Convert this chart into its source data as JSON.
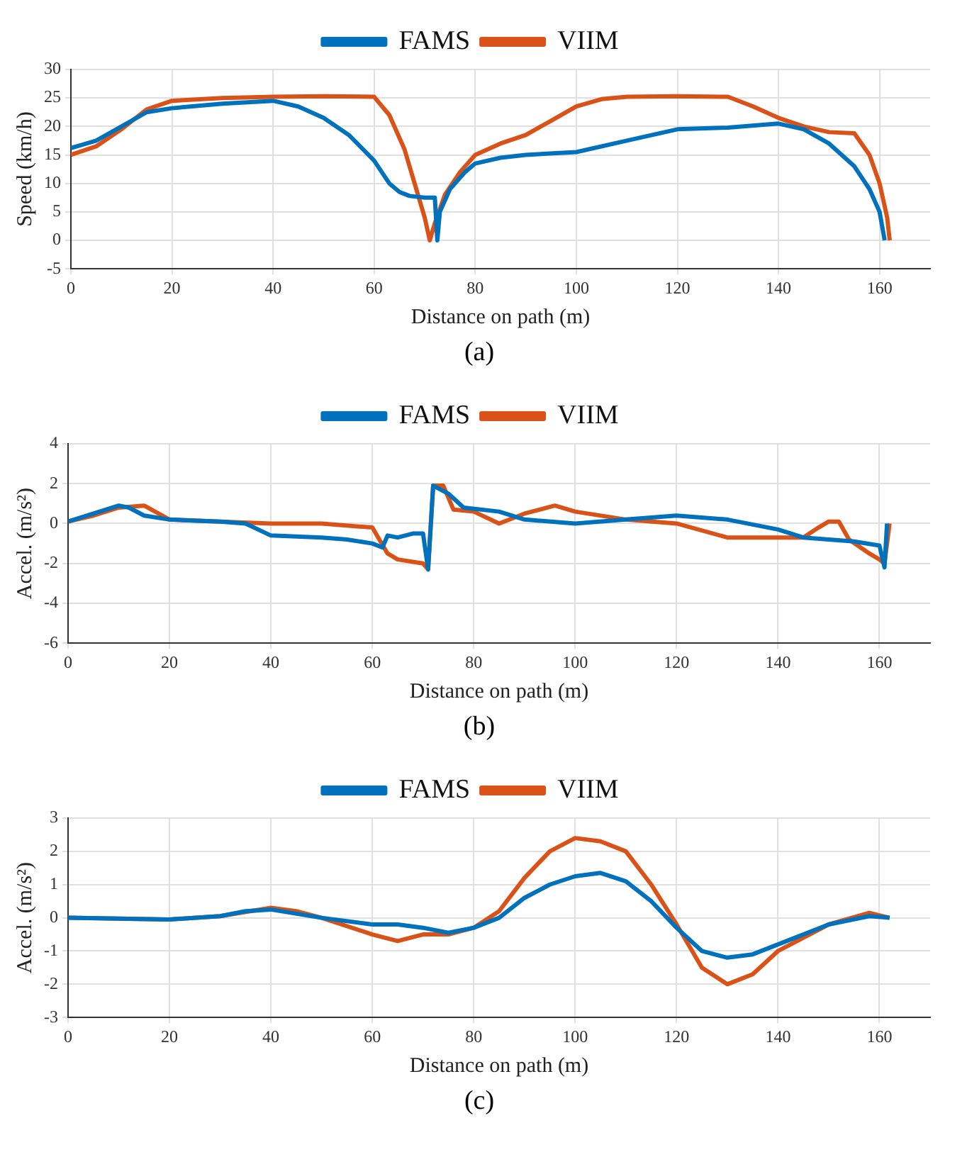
{
  "chart_data": [
    {
      "type": "line",
      "ylabel": "Speed (km/h)",
      "xlabel": "Distance on path (m)",
      "annotations": [
        "(a)"
      ],
      "xlim": [
        0,
        170
      ],
      "xticks": [
        0,
        20,
        40,
        60,
        80,
        100,
        120,
        140,
        160
      ],
      "ylim": [
        -5,
        30
      ],
      "yticks": [
        -5,
        0,
        5,
        10,
        15,
        20,
        25,
        30
      ],
      "grid": true,
      "legend": "top",
      "marker": "none",
      "line_style": "solid",
      "series": [
        {
          "name": "FAMS",
          "color": "#0072bd",
          "x": [
            0,
            5,
            10,
            15,
            20,
            30,
            40,
            45,
            50,
            55,
            60,
            63,
            65,
            67,
            70,
            72,
            72.5,
            73,
            75,
            78,
            80,
            85,
            90,
            100,
            110,
            120,
            130,
            140,
            145,
            150,
            155,
            158,
            160,
            161
          ],
          "values": [
            16.2,
            17.5,
            20,
            22.5,
            23.2,
            24,
            24.5,
            23.5,
            21.5,
            18.5,
            14,
            10,
            8.5,
            7.8,
            7.5,
            7.5,
            0,
            5,
            9,
            12,
            13.5,
            14.5,
            15,
            15.5,
            17.5,
            19.5,
            19.8,
            20.5,
            19.5,
            17,
            13,
            9,
            5,
            0
          ]
        },
        {
          "name": "VIIM",
          "color": "#d95319",
          "x": [
            0,
            5,
            10,
            15,
            20,
            30,
            40,
            50,
            60,
            63,
            66,
            68,
            70,
            71,
            72,
            74,
            77,
            80,
            85,
            90,
            95,
            100,
            105,
            110,
            120,
            130,
            135,
            140,
            145,
            150,
            155,
            158,
            160,
            161.5,
            162
          ],
          "values": [
            15,
            16.5,
            19.5,
            23,
            24.5,
            25,
            25.2,
            25.3,
            25.2,
            22,
            16,
            10,
            4,
            0,
            3,
            8,
            12,
            15,
            17,
            18.5,
            21,
            23.5,
            24.8,
            25.2,
            25.3,
            25.2,
            23.5,
            21.5,
            20,
            19,
            18.8,
            15,
            10,
            4,
            0
          ]
        }
      ]
    },
    {
      "type": "line",
      "ylabel": "Accel. (m/s²)",
      "xlabel": "Distance on path (m)",
      "annotations": [
        "(b)"
      ],
      "xlim": [
        0,
        170
      ],
      "xticks": [
        0,
        20,
        40,
        60,
        80,
        100,
        120,
        140,
        160
      ],
      "ylim": [
        -6,
        4
      ],
      "yticks": [
        -6,
        -4,
        -2,
        0,
        2,
        4
      ],
      "grid": true,
      "legend": "top",
      "marker": "none",
      "line_style": "solid",
      "series": [
        {
          "name": "FAMS",
          "color": "#0072bd",
          "x": [
            0,
            5,
            10,
            12,
            15,
            20,
            30,
            35,
            40,
            50,
            55,
            60,
            62,
            63,
            65,
            68,
            70,
            71,
            72,
            75,
            78,
            85,
            90,
            100,
            110,
            120,
            130,
            140,
            145,
            150,
            155,
            160,
            161,
            161.5
          ],
          "values": [
            0.1,
            0.5,
            0.9,
            0.8,
            0.4,
            0.2,
            0.1,
            0,
            -0.6,
            -0.7,
            -0.8,
            -1,
            -1.2,
            -0.6,
            -0.7,
            -0.5,
            -0.5,
            -2.3,
            1.9,
            1.5,
            0.8,
            0.6,
            0.2,
            0,
            0.2,
            0.4,
            0.2,
            -0.3,
            -0.7,
            -0.8,
            -0.9,
            -1.1,
            -2.2,
            0
          ]
        },
        {
          "name": "VIIM",
          "color": "#d95319",
          "x": [
            0,
            5,
            10,
            15,
            20,
            30,
            40,
            50,
            60,
            63,
            65,
            70,
            71,
            72,
            74,
            76,
            80,
            85,
            90,
            96,
            100,
            110,
            120,
            130,
            140,
            145,
            148,
            150,
            152,
            154,
            158,
            160,
            161,
            162
          ],
          "values": [
            0.1,
            0.4,
            0.8,
            0.9,
            0.2,
            0.1,
            0,
            0,
            -0.2,
            -1.5,
            -1.8,
            -2,
            -2.3,
            1.9,
            1.9,
            0.7,
            0.6,
            0,
            0.5,
            0.9,
            0.6,
            0.2,
            0,
            -0.7,
            -0.7,
            -0.7,
            -0.2,
            0.1,
            0.1,
            -0.8,
            -1.5,
            -1.8,
            -2,
            0
          ]
        }
      ]
    },
    {
      "type": "line",
      "ylabel": "Accel. (m/s²)",
      "xlabel": "Distance on path (m)",
      "annotations": [
        "(c)"
      ],
      "xlim": [
        0,
        170
      ],
      "xticks": [
        0,
        20,
        40,
        60,
        80,
        100,
        120,
        140,
        160
      ],
      "ylim": [
        -3,
        3
      ],
      "yticks": [
        -3,
        -2,
        -1,
        0,
        1,
        2,
        3
      ],
      "grid": true,
      "legend": "top",
      "marker": "none",
      "line_style": "solid",
      "series": [
        {
          "name": "FAMS",
          "color": "#0072bd",
          "x": [
            0,
            20,
            30,
            35,
            40,
            50,
            60,
            65,
            70,
            75,
            80,
            85,
            90,
            95,
            100,
            105,
            110,
            115,
            120,
            125,
            130,
            135,
            140,
            150,
            158,
            162
          ],
          "values": [
            0,
            -0.05,
            0.05,
            0.2,
            0.25,
            0,
            -0.2,
            -0.2,
            -0.3,
            -0.45,
            -0.3,
            0,
            0.6,
            1,
            1.25,
            1.35,
            1.1,
            0.5,
            -0.3,
            -1,
            -1.2,
            -1.1,
            -0.8,
            -0.2,
            0.05,
            0
          ]
        },
        {
          "name": "VIIM",
          "color": "#d95319",
          "x": [
            0,
            20,
            30,
            40,
            45,
            50,
            60,
            65,
            70,
            75,
            80,
            85,
            90,
            95,
            100,
            105,
            110,
            115,
            120,
            125,
            130,
            135,
            140,
            150,
            158,
            162
          ],
          "values": [
            0,
            -0.05,
            0.05,
            0.3,
            0.2,
            0,
            -0.5,
            -0.7,
            -0.5,
            -0.5,
            -0.3,
            0.2,
            1.2,
            2,
            2.4,
            2.3,
            2,
            1,
            -0.2,
            -1.5,
            -2,
            -1.7,
            -1,
            -0.2,
            0.15,
            0
          ]
        }
      ]
    }
  ]
}
